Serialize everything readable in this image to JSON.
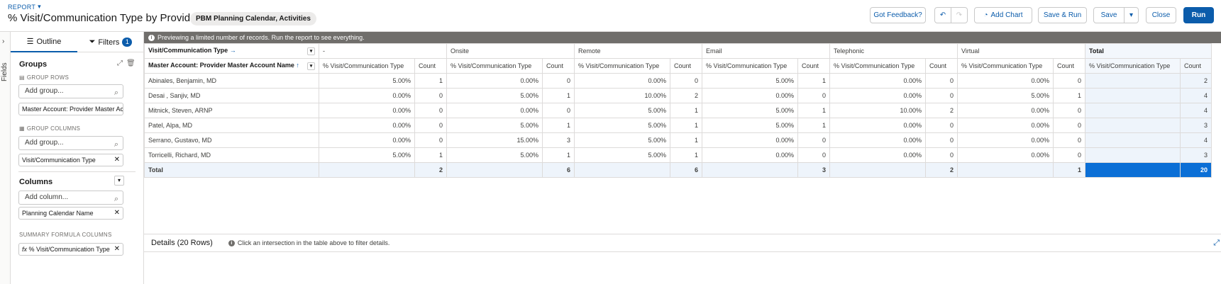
{
  "header": {
    "report_label": "REPORT",
    "title": "% Visit/Communication Type by Provider",
    "report_type": "PBM Planning Calendar, Activities",
    "buttons": {
      "feedback": "Got Feedback?",
      "add_chart": "Add Chart",
      "save_run": "Save & Run",
      "save": "Save",
      "close": "Close",
      "run": "Run"
    }
  },
  "fields_rail": {
    "label": "Fields"
  },
  "left_panel": {
    "tabs": {
      "outline": "Outline",
      "filters": "Filters",
      "filters_count": "1"
    },
    "groups_title": "Groups",
    "group_rows_label": "GROUP ROWS",
    "add_group_placeholder": "Add group...",
    "group_row_chip": "Master Account: Provider Master Acco",
    "group_columns_label": "GROUP COLUMNS",
    "add_group_col_placeholder": "Add group...",
    "group_column_chip": "Visit/Communication Type",
    "columns_title": "Columns",
    "add_column_placeholder": "Add column...",
    "column_chip": "Planning Calendar Name",
    "summary_formula_label": "SUMMARY FORMULA COLUMNS",
    "formula_chip": "% Visit/Communication Type"
  },
  "preview_banner": "Previewing a limited number of records. Run the report to see everything.",
  "grid": {
    "col_group_header": "Visit/Communication Type",
    "row_group_header": "Master Account: Provider Master Account Name",
    "groups": [
      "-",
      "Onsite",
      "Remote",
      "Email",
      "Telephonic",
      "Virtual",
      "Total"
    ],
    "pct_label": "% Visit/Communication Type",
    "count_label": "Count",
    "rows": [
      {
        "name": "Abinales, Benjamin, MD",
        "cells": [
          "5.00%",
          "1",
          "0.00%",
          "0",
          "0.00%",
          "0",
          "5.00%",
          "1",
          "0.00%",
          "0",
          "0.00%",
          "0",
          "",
          "2"
        ]
      },
      {
        "name": "Desai , Sanjiv, MD",
        "cells": [
          "0.00%",
          "0",
          "5.00%",
          "1",
          "10.00%",
          "2",
          "0.00%",
          "0",
          "0.00%",
          "0",
          "5.00%",
          "1",
          "",
          "4"
        ]
      },
      {
        "name": "Mitnick, Steven, ARNP",
        "cells": [
          "0.00%",
          "0",
          "0.00%",
          "0",
          "5.00%",
          "1",
          "5.00%",
          "1",
          "10.00%",
          "2",
          "0.00%",
          "0",
          "",
          "4"
        ]
      },
      {
        "name": "Patel, Alpa, MD",
        "cells": [
          "0.00%",
          "0",
          "5.00%",
          "1",
          "5.00%",
          "1",
          "5.00%",
          "1",
          "0.00%",
          "0",
          "0.00%",
          "0",
          "",
          "3"
        ]
      },
      {
        "name": "Serrano, Gustavo, MD",
        "cells": [
          "0.00%",
          "0",
          "15.00%",
          "3",
          "5.00%",
          "1",
          "0.00%",
          "0",
          "0.00%",
          "0",
          "0.00%",
          "0",
          "",
          "4"
        ]
      },
      {
        "name": "Torricelli, Richard, MD",
        "cells": [
          "5.00%",
          "1",
          "5.00%",
          "1",
          "5.00%",
          "1",
          "0.00%",
          "0",
          "0.00%",
          "0",
          "0.00%",
          "0",
          "",
          "3"
        ]
      }
    ],
    "total_label": "Total",
    "total_cells": [
      "",
      "2",
      "",
      "6",
      "",
      "6",
      "",
      "3",
      "",
      "2",
      "",
      "1",
      "",
      "20"
    ]
  },
  "details": {
    "title": "Details (20 Rows)",
    "hint": "Click an intersection in the table above to filter details."
  },
  "colors": {
    "brand": "#0b5cab",
    "grand_total": "#0b6fd6",
    "total_bg": "#eef4fb",
    "banner": "#706e6b"
  }
}
